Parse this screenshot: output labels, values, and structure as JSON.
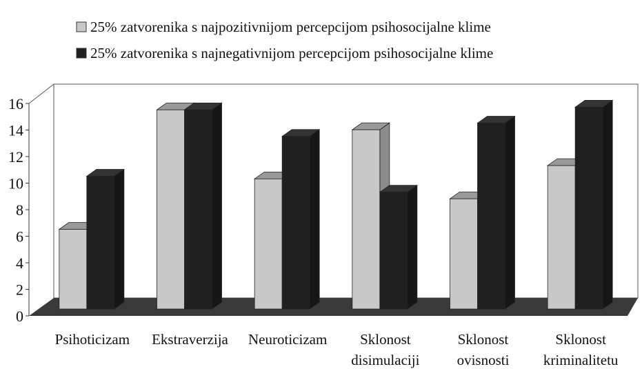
{
  "chart_data": {
    "type": "bar3d",
    "categories": [
      "Psihoticizam",
      "Ekstraverzija",
      "Neuroticizam",
      [
        "Sklonost",
        "disimulaciji"
      ],
      [
        "Sklonost",
        "ovisnosti"
      ],
      [
        "Sklonost",
        "kriminalitetu"
      ]
    ],
    "series": [
      {
        "name": "25% zatvorenika s najpozitivnijom percepcijom psihosocijalne klime",
        "color": "#c8c8c8",
        "values": [
          6,
          15,
          9.8,
          13.5,
          8.3,
          10.8
        ]
      },
      {
        "name": "25% zatvorenika s najnegativnijom percepcijom psihosocijalne klime",
        "color": "#202020",
        "values": [
          10,
          15,
          13,
          8.8,
          14,
          15.2
        ]
      }
    ],
    "ylim": [
      0,
      16
    ],
    "yticks": [
      0,
      2,
      4,
      6,
      8,
      10,
      12,
      14,
      16
    ],
    "grid": false
  }
}
